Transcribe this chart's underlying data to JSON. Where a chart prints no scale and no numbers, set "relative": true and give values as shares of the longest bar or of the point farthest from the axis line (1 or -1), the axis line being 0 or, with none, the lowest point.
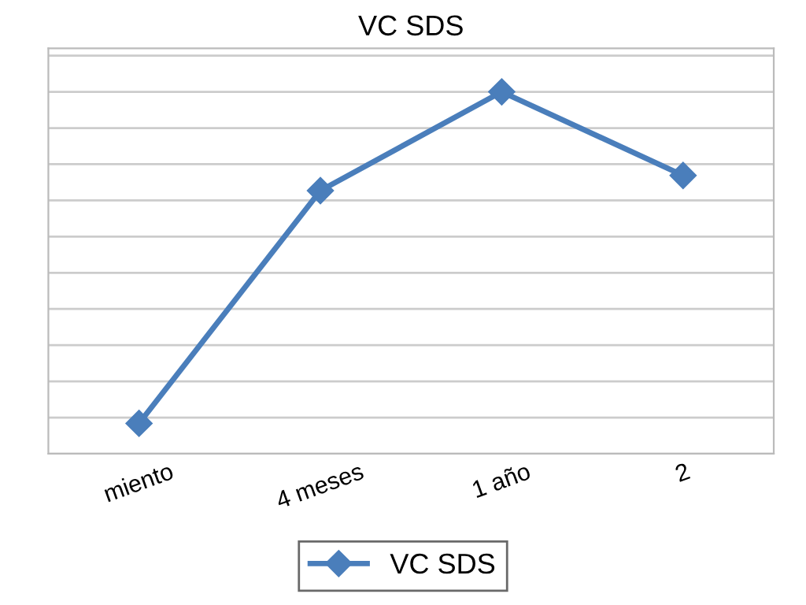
{
  "chart_data": {
    "type": "line",
    "title": "VC SDS",
    "categories": [
      "miento",
      "4 meses",
      "1 año",
      "2"
    ],
    "series": [
      {
        "name": "VC SDS",
        "color": "#4a7ebb",
        "values": [
          0.084,
          0.727,
          1,
          0.769
        ]
      }
    ],
    "relative": true,
    "grid": "y",
    "legend": "bottom",
    "marker": "diamond",
    "line_style": "solid"
  }
}
